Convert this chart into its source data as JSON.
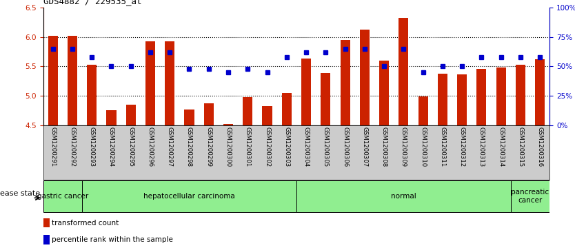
{
  "title": "GDS4882 / 229535_at",
  "samples": [
    "GSM1200291",
    "GSM1200292",
    "GSM1200293",
    "GSM1200294",
    "GSM1200295",
    "GSM1200296",
    "GSM1200297",
    "GSM1200298",
    "GSM1200299",
    "GSM1200300",
    "GSM1200301",
    "GSM1200302",
    "GSM1200303",
    "GSM1200304",
    "GSM1200305",
    "GSM1200306",
    "GSM1200307",
    "GSM1200308",
    "GSM1200309",
    "GSM1200310",
    "GSM1200311",
    "GSM1200312",
    "GSM1200313",
    "GSM1200314",
    "GSM1200315",
    "GSM1200316"
  ],
  "red_values": [
    6.02,
    6.02,
    5.52,
    4.75,
    4.85,
    5.93,
    5.92,
    4.76,
    4.87,
    4.52,
    4.97,
    4.82,
    5.05,
    5.63,
    5.38,
    5.95,
    6.12,
    5.6,
    6.32,
    4.99,
    5.37,
    5.36,
    5.46,
    5.48,
    5.52,
    5.62
  ],
  "blue_pct": [
    65,
    65,
    58,
    50,
    50,
    62,
    62,
    48,
    48,
    45,
    48,
    45,
    58,
    62,
    62,
    65,
    65,
    50,
    65,
    45,
    50,
    50,
    58,
    58,
    58,
    58
  ],
  "group_boundaries": [
    {
      "start": 0,
      "end": 2,
      "label": "gastric cancer"
    },
    {
      "start": 2,
      "end": 13,
      "label": "hepatocellular carcinoma"
    },
    {
      "start": 13,
      "end": 24,
      "label": "normal"
    },
    {
      "start": 24,
      "end": 26,
      "label": "pancreatic\ncancer"
    }
  ],
  "ylim_left": [
    4.5,
    6.5
  ],
  "ylim_right": [
    0,
    100
  ],
  "yticks_left": [
    4.5,
    5.0,
    5.5,
    6.0,
    6.5
  ],
  "yticks_right": [
    0,
    25,
    50,
    75,
    100
  ],
  "bar_color": "#cc2200",
  "dot_color": "#0000cc",
  "axis_color_left": "#cc2200",
  "axis_color_right": "#0000cc",
  "grid_lines": [
    5.0,
    5.5,
    6.0
  ],
  "bar_width": 0.5,
  "baseline": 4.5,
  "group_color": "#90ee90",
  "xtick_bg": "#cccccc"
}
